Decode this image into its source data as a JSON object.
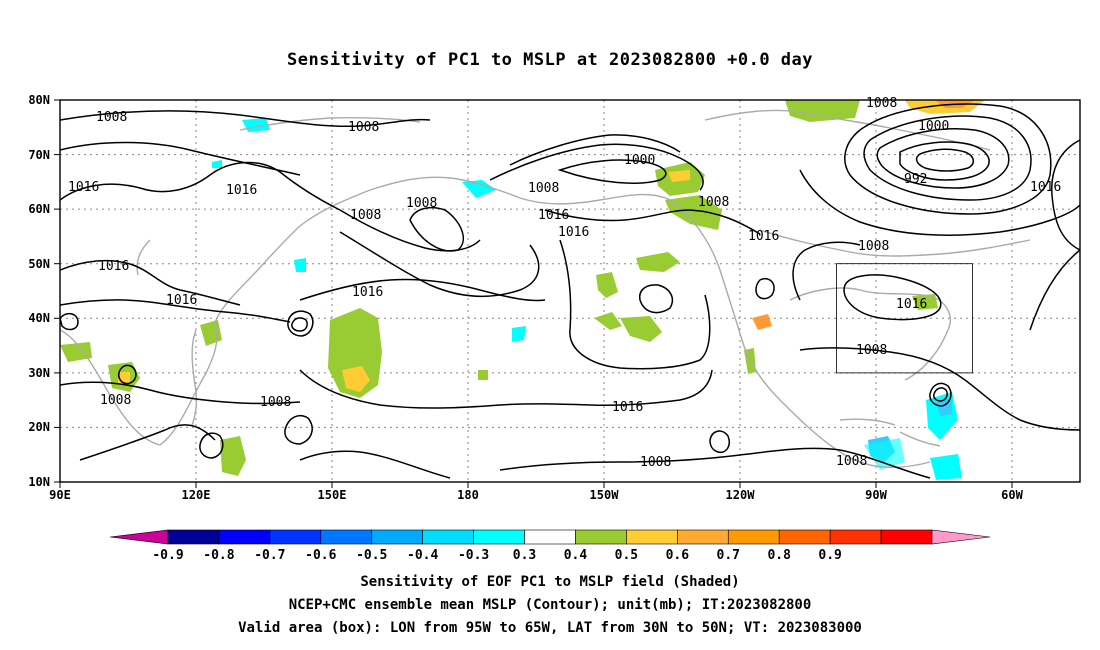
{
  "title": "Sensitivity of PC1 to MSLP at 2023082800 +0.0 day",
  "map": {
    "lat_ticks": [
      "80N",
      "70N",
      "60N",
      "50N",
      "40N",
      "30N",
      "20N",
      "10N"
    ],
    "lon_ticks": [
      "90E",
      "120E",
      "150E",
      "180",
      "150W",
      "120W",
      "90W",
      "60W"
    ],
    "lon_range_deg": [
      90,
      315
    ],
    "lat_range_deg": [
      10,
      80
    ],
    "grid": "dotted",
    "box": {
      "lon_west": -95,
      "lon_east": -65,
      "lat_south": 30,
      "lat_north": 50
    },
    "contour_labels": [
      "1008",
      "1008",
      "1016",
      "1016",
      "1016",
      "1016",
      "1008",
      "1008",
      "1008",
      "1016",
      "1008",
      "1016",
      "1016",
      "1000",
      "1008",
      "1016",
      "1008",
      "1008",
      "1016",
      "1000",
      "992",
      "1016",
      "1008",
      "1016",
      "1008",
      "1008"
    ],
    "colors": {
      "positive_0_3": "#99cc33",
      "positive_0_4": "#ffcc33",
      "positive_0_5": "#ff9933",
      "negative_0_3": "#00ffff",
      "negative_0_4": "#33ccff",
      "contour": "#000000",
      "coast": "#aaaaaa"
    }
  },
  "colorbar": {
    "labels": [
      "-0.9",
      "-0.8",
      "-0.7",
      "-0.6",
      "-0.5",
      "-0.4",
      "-0.3",
      "0.3",
      "0.4",
      "0.5",
      "0.6",
      "0.7",
      "0.8",
      "0.9"
    ],
    "colors": [
      "#cc0099",
      "#000099",
      "#0000ff",
      "#0033ff",
      "#0077ff",
      "#00aaff",
      "#00ddff",
      "#00ffff",
      "#ffffff",
      "#99cc33",
      "#ffcc33",
      "#ffaa33",
      "#ff9900",
      "#ff6600",
      "#ff3300",
      "#ff0000",
      "#ff99cc"
    ]
  },
  "captions": [
    "Sensitivity of EOF PC1 to MSLP field (Shaded)",
    "NCEP+CMC ensemble mean MSLP (Contour); unit(mb); IT:2023082800",
    "Valid area (box): LON from 95W to 65W, LAT from 30N to 50N; VT: 2023083000"
  ]
}
